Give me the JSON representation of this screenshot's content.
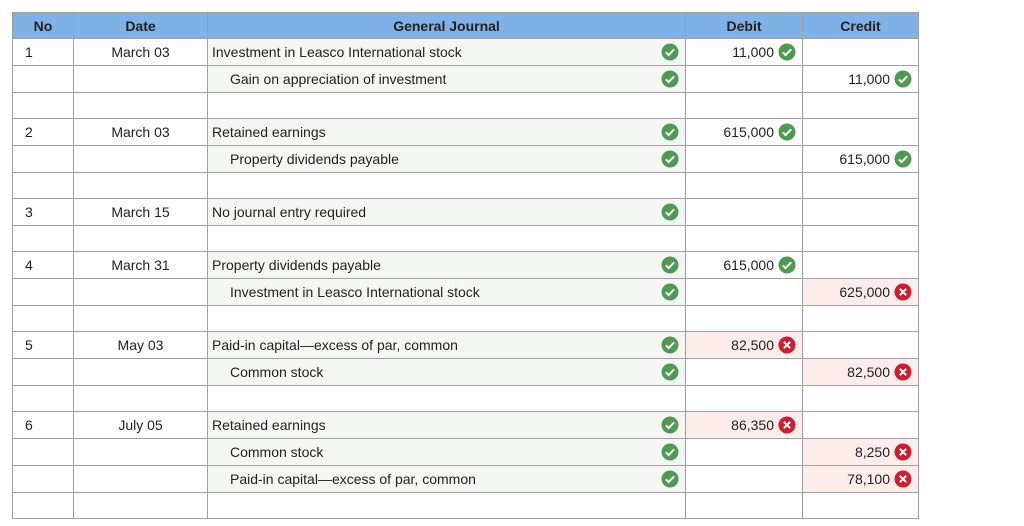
{
  "header": {
    "columns": [
      "No",
      "Date",
      "General Journal",
      "Debit",
      "Credit"
    ]
  },
  "entries": [
    {
      "no": "1",
      "date": "March 03",
      "lines": [
        {
          "account": "Investment in Leasco International stock",
          "indent": false,
          "account_status": "correct",
          "debit": "11,000",
          "debit_status": "correct"
        },
        {
          "account": "Gain on appreciation of investment",
          "indent": true,
          "account_status": "correct",
          "credit": "11,000",
          "credit_status": "correct"
        }
      ]
    },
    {
      "no": "2",
      "date": "March 03",
      "lines": [
        {
          "account": "Retained earnings",
          "indent": false,
          "account_status": "correct",
          "debit": "615,000",
          "debit_status": "correct"
        },
        {
          "account": "Property dividends payable",
          "indent": true,
          "account_status": "correct",
          "credit": "615,000",
          "credit_status": "correct"
        }
      ]
    },
    {
      "no": "3",
      "date": "March 15",
      "lines": [
        {
          "account": "No journal entry required",
          "indent": false,
          "account_status": "correct"
        }
      ]
    },
    {
      "no": "4",
      "date": "March 31",
      "lines": [
        {
          "account": "Property dividends payable",
          "indent": false,
          "account_status": "correct",
          "debit": "615,000",
          "debit_status": "correct"
        },
        {
          "account": "Investment in Leasco International stock",
          "indent": true,
          "account_status": "correct",
          "credit": "625,000",
          "credit_status": "incorrect"
        }
      ]
    },
    {
      "no": "5",
      "date": "May 03",
      "lines": [
        {
          "account": "Paid-in capital—excess of par, common",
          "indent": false,
          "account_status": "correct",
          "debit": "82,500",
          "debit_status": "incorrect"
        },
        {
          "account": "Common stock",
          "indent": true,
          "account_status": "correct",
          "credit": "82,500",
          "credit_status": "incorrect"
        }
      ]
    },
    {
      "no": "6",
      "date": "July 05",
      "lines": [
        {
          "account": "Retained earnings",
          "indent": false,
          "account_status": "correct",
          "debit": "86,350",
          "debit_status": "incorrect"
        },
        {
          "account": "Common stock",
          "indent": true,
          "account_status": "correct",
          "credit": "8,250",
          "credit_status": "incorrect"
        },
        {
          "account": "Paid-in capital—excess of par, common",
          "indent": true,
          "account_status": "correct",
          "credit": "78,100",
          "credit_status": "incorrect"
        }
      ]
    }
  ]
}
